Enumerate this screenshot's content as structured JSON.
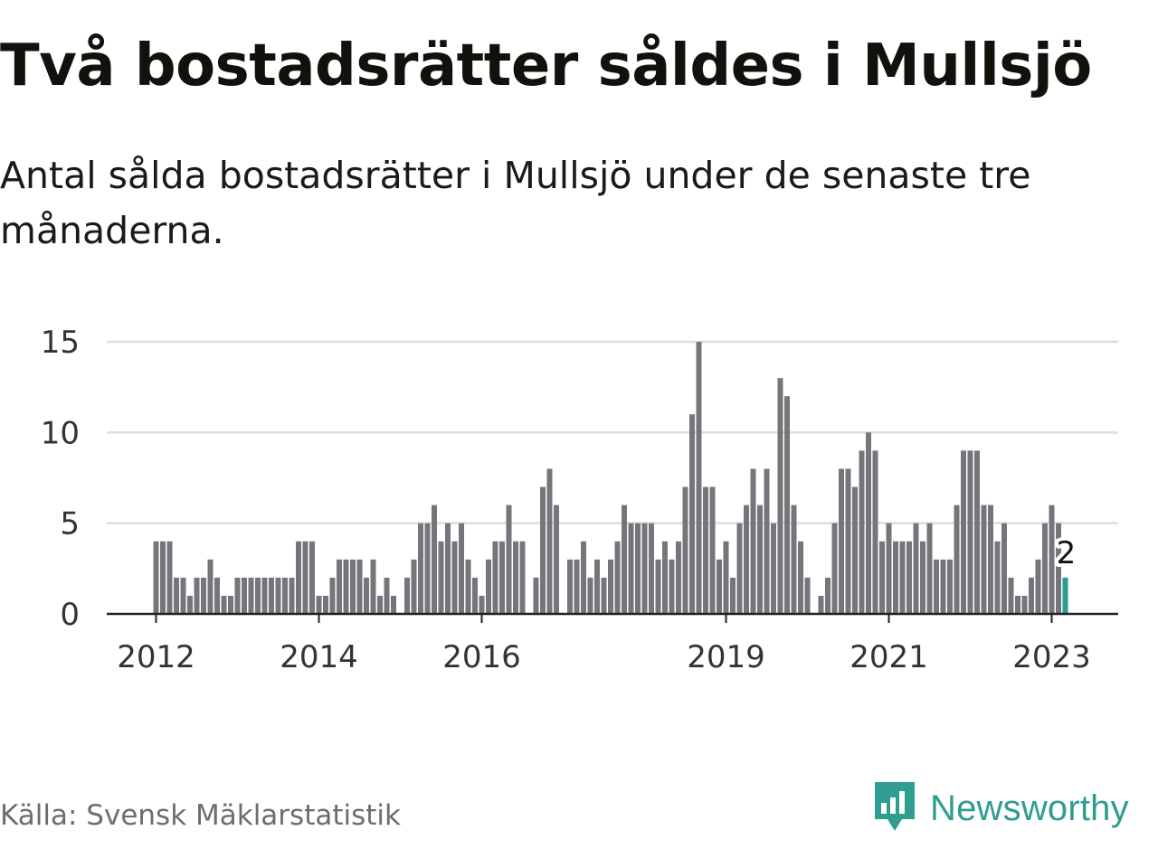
{
  "header": {
    "title": "Två bostadsrätter såldes i Mullsjö",
    "subtitle": "Antal sålda bostadsrätter i Mullsjö under de senaste tre månaderna."
  },
  "footer": {
    "source": "Källa: Svensk Mäklarstatistik",
    "brand": "Newsworthy",
    "brand_icon": "bar-chart-speech-bubble-icon"
  },
  "colors": {
    "bar": "#76757b",
    "highlight": "#2a9d8f",
    "grid": "#dddddd",
    "axis": "#222222",
    "brand": "#2f9d90"
  },
  "chart_data": {
    "type": "bar",
    "title": "Två bostadsrätter såldes i Mullsjö",
    "subtitle": "Antal sålda bostadsrätter i Mullsjö under de senaste tre månaderna.",
    "xlabel": "",
    "ylabel": "",
    "ylim": [
      0,
      15
    ],
    "yticks": [
      0,
      5,
      10,
      15
    ],
    "grid": true,
    "x_start": "2012-01",
    "x_end": "2023-03",
    "x_interval": "month",
    "xticks": [
      {
        "label": "2012",
        "date": "2012-01"
      },
      {
        "label": "2014",
        "date": "2014-01"
      },
      {
        "label": "2016",
        "date": "2016-01"
      },
      {
        "label": "2019",
        "date": "2019-01"
      },
      {
        "label": "2021",
        "date": "2021-01"
      },
      {
        "label": "2023",
        "date": "2023-01"
      }
    ],
    "values": [
      4,
      4,
      4,
      2,
      2,
      1,
      2,
      2,
      3,
      2,
      1,
      1,
      2,
      2,
      2,
      2,
      2,
      2,
      2,
      2,
      2,
      4,
      4,
      4,
      1,
      1,
      2,
      3,
      3,
      3,
      3,
      2,
      3,
      1,
      2,
      1,
      0,
      2,
      3,
      5,
      5,
      6,
      4,
      5,
      4,
      5,
      3,
      2,
      1,
      3,
      4,
      4,
      6,
      4,
      4,
      0,
      2,
      7,
      8,
      6,
      0,
      3,
      3,
      4,
      2,
      3,
      2,
      3,
      4,
      6,
      5,
      5,
      5,
      5,
      3,
      4,
      3,
      4,
      7,
      11,
      15,
      7,
      7,
      3,
      4,
      2,
      5,
      6,
      8,
      6,
      8,
      5,
      13,
      12,
      6,
      4,
      2,
      0,
      1,
      2,
      5,
      8,
      8,
      7,
      9,
      10,
      9,
      4,
      5,
      4,
      4,
      4,
      5,
      4,
      5,
      3,
      3,
      3,
      6,
      9,
      9,
      9,
      6,
      6,
      4,
      5,
      2,
      1,
      1,
      2,
      3,
      5,
      6,
      5,
      2
    ],
    "highlight": {
      "date": "2023-03",
      "value": 2,
      "label": "2"
    }
  }
}
